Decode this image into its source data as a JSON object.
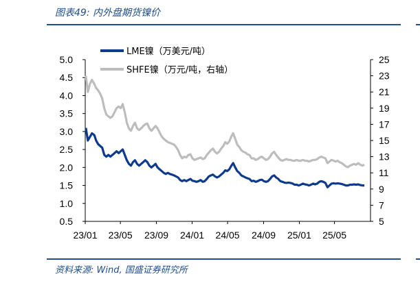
{
  "figure": {
    "title": "图表49: 内外盘期货镍价",
    "source": "资料来源: Wind, 国盛证券研究所"
  },
  "colors": {
    "lme": "#0d3a8f",
    "shfe": "#bdbdbd",
    "accent": "#1f4e8c",
    "axis": "#000000"
  },
  "chart_data": {
    "type": "line",
    "title": "",
    "xlabel": "",
    "ylabel": "",
    "x_ticks": [
      "23/01",
      "23/05",
      "23/09",
      "24/01",
      "24/05",
      "24/09",
      "25/01",
      "25/05"
    ],
    "y_left": {
      "range": [
        0.5,
        5.0
      ],
      "ticks": [
        "5.0",
        "4.5",
        "4.0",
        "3.5",
        "3.0",
        "2.5",
        "2.0",
        "1.5",
        "1.0",
        "0.5"
      ]
    },
    "y_right": {
      "range": [
        5,
        25
      ],
      "ticks": [
        "25",
        "23",
        "21",
        "19",
        "17",
        "15",
        "13",
        "11",
        "9",
        "7",
        "5"
      ]
    },
    "legend_position": "top-center",
    "grid": false,
    "series": [
      {
        "name": "LME镍（万美元/吨）",
        "axis": "left",
        "points": [
          [
            "2023-01-03",
            3.1
          ],
          [
            "2023-01-10",
            2.75
          ],
          [
            "2023-01-17",
            2.85
          ],
          [
            "2023-01-24",
            2.95
          ],
          [
            "2023-02-01",
            2.9
          ],
          [
            "2023-02-07",
            2.75
          ],
          [
            "2023-02-14",
            2.65
          ],
          [
            "2023-02-21",
            2.6
          ],
          [
            "2023-02-28",
            2.55
          ],
          [
            "2023-03-07",
            2.35
          ],
          [
            "2023-03-14",
            2.3
          ],
          [
            "2023-03-21",
            2.35
          ],
          [
            "2023-03-28",
            2.3
          ],
          [
            "2023-04-04",
            2.35
          ],
          [
            "2023-04-11",
            2.4
          ],
          [
            "2023-04-18",
            2.45
          ],
          [
            "2023-04-25",
            2.4
          ],
          [
            "2023-05-02",
            2.45
          ],
          [
            "2023-05-09",
            2.5
          ],
          [
            "2023-05-16",
            2.35
          ],
          [
            "2023-05-23",
            2.2
          ],
          [
            "2023-05-30",
            2.1
          ],
          [
            "2023-06-06",
            2.05
          ],
          [
            "2023-06-13",
            2.15
          ],
          [
            "2023-06-20",
            2.2
          ],
          [
            "2023-06-27",
            2.1
          ],
          [
            "2023-07-04",
            2.05
          ],
          [
            "2023-07-11",
            2.1
          ],
          [
            "2023-07-18",
            2.15
          ],
          [
            "2023-07-25",
            2.2
          ],
          [
            "2023-08-01",
            2.15
          ],
          [
            "2023-08-08",
            2.05
          ],
          [
            "2023-08-15",
            2.0
          ],
          [
            "2023-08-22",
            2.05
          ],
          [
            "2023-08-29",
            2.1
          ],
          [
            "2023-09-05",
            2.0
          ],
          [
            "2023-09-12",
            1.95
          ],
          [
            "2023-09-19",
            1.9
          ],
          [
            "2023-09-26",
            1.85
          ],
          [
            "2023-10-03",
            1.82
          ],
          [
            "2023-10-10",
            1.85
          ],
          [
            "2023-10-17",
            1.82
          ],
          [
            "2023-10-24",
            1.8
          ],
          [
            "2023-10-31",
            1.78
          ],
          [
            "2023-11-07",
            1.75
          ],
          [
            "2023-11-14",
            1.72
          ],
          [
            "2023-11-21",
            1.65
          ],
          [
            "2023-11-28",
            1.62
          ],
          [
            "2023-12-05",
            1.65
          ],
          [
            "2023-12-12",
            1.62
          ],
          [
            "2023-12-19",
            1.65
          ],
          [
            "2023-12-26",
            1.68
          ],
          [
            "2024-01-02",
            1.63
          ],
          [
            "2024-01-09",
            1.62
          ],
          [
            "2024-01-16",
            1.6
          ],
          [
            "2024-01-23",
            1.62
          ],
          [
            "2024-01-30",
            1.65
          ],
          [
            "2024-02-06",
            1.6
          ],
          [
            "2024-02-13",
            1.62
          ],
          [
            "2024-02-20",
            1.68
          ],
          [
            "2024-02-27",
            1.75
          ],
          [
            "2024-03-05",
            1.78
          ],
          [
            "2024-03-12",
            1.8
          ],
          [
            "2024-03-19",
            1.75
          ],
          [
            "2024-03-26",
            1.72
          ],
          [
            "2024-04-02",
            1.75
          ],
          [
            "2024-04-09",
            1.8
          ],
          [
            "2024-04-16",
            1.85
          ],
          [
            "2024-04-23",
            1.92
          ],
          [
            "2024-04-30",
            1.9
          ],
          [
            "2024-05-07",
            1.95
          ],
          [
            "2024-05-14",
            2.05
          ],
          [
            "2024-05-20",
            2.12
          ],
          [
            "2024-05-27",
            2.0
          ],
          [
            "2024-06-03",
            1.9
          ],
          [
            "2024-06-10",
            1.85
          ],
          [
            "2024-06-17",
            1.78
          ],
          [
            "2024-06-24",
            1.75
          ],
          [
            "2024-07-01",
            1.72
          ],
          [
            "2024-07-08",
            1.7
          ],
          [
            "2024-07-15",
            1.68
          ],
          [
            "2024-07-22",
            1.62
          ],
          [
            "2024-07-29",
            1.63
          ],
          [
            "2024-08-05",
            1.6
          ],
          [
            "2024-08-12",
            1.62
          ],
          [
            "2024-08-19",
            1.65
          ],
          [
            "2024-08-26",
            1.66
          ],
          [
            "2024-09-02",
            1.62
          ],
          [
            "2024-09-09",
            1.6
          ],
          [
            "2024-09-16",
            1.62
          ],
          [
            "2024-09-23",
            1.68
          ],
          [
            "2024-09-30",
            1.75
          ],
          [
            "2024-10-07",
            1.78
          ],
          [
            "2024-10-14",
            1.72
          ],
          [
            "2024-10-21",
            1.68
          ],
          [
            "2024-10-28",
            1.62
          ],
          [
            "2024-11-04",
            1.6
          ],
          [
            "2024-11-11",
            1.58
          ],
          [
            "2024-11-18",
            1.57
          ],
          [
            "2024-11-25",
            1.58
          ],
          [
            "2024-12-02",
            1.57
          ],
          [
            "2024-12-09",
            1.55
          ],
          [
            "2024-12-16",
            1.52
          ],
          [
            "2024-12-23",
            1.52
          ],
          [
            "2024-12-30",
            1.5
          ],
          [
            "2025-01-06",
            1.52
          ],
          [
            "2025-01-13",
            1.55
          ],
          [
            "2025-01-20",
            1.53
          ],
          [
            "2025-01-27",
            1.52
          ],
          [
            "2025-02-03",
            1.5
          ],
          [
            "2025-02-10",
            1.52
          ],
          [
            "2025-02-17",
            1.55
          ],
          [
            "2025-02-24",
            1.53
          ],
          [
            "2025-03-03",
            1.55
          ],
          [
            "2025-03-10",
            1.6
          ],
          [
            "2025-03-17",
            1.62
          ],
          [
            "2025-03-24",
            1.6
          ],
          [
            "2025-03-31",
            1.57
          ],
          [
            "2025-04-07",
            1.45
          ],
          [
            "2025-04-14",
            1.5
          ],
          [
            "2025-04-21",
            1.55
          ],
          [
            "2025-04-28",
            1.56
          ],
          [
            "2025-05-05",
            1.55
          ],
          [
            "2025-05-12",
            1.56
          ],
          [
            "2025-05-19",
            1.55
          ],
          [
            "2025-05-26",
            1.54
          ],
          [
            "2025-06-02",
            1.52
          ],
          [
            "2025-06-09",
            1.5
          ],
          [
            "2025-06-16",
            1.5
          ],
          [
            "2025-06-23",
            1.52
          ],
          [
            "2025-06-30",
            1.52
          ],
          [
            "2025-07-07",
            1.53
          ],
          [
            "2025-07-14",
            1.52
          ],
          [
            "2025-07-21",
            1.53
          ],
          [
            "2025-07-28",
            1.51
          ],
          [
            "2025-08-04",
            1.5
          ],
          [
            "2025-08-11",
            1.5
          ]
        ]
      },
      {
        "name": "SHFE镍（万元/吨，右轴）",
        "axis": "right",
        "points": [
          [
            "2023-01-03",
            23.0
          ],
          [
            "2023-01-10",
            21.0
          ],
          [
            "2023-01-17",
            22.0
          ],
          [
            "2023-01-24",
            22.5
          ],
          [
            "2023-02-01",
            22.0
          ],
          [
            "2023-02-07",
            21.5
          ],
          [
            "2023-02-14",
            21.2
          ],
          [
            "2023-02-21",
            20.8
          ],
          [
            "2023-02-28",
            20.2
          ],
          [
            "2023-03-07",
            19.0
          ],
          [
            "2023-03-14",
            18.2
          ],
          [
            "2023-03-21",
            18.0
          ],
          [
            "2023-03-28",
            17.8
          ],
          [
            "2023-04-04",
            18.0
          ],
          [
            "2023-04-11",
            18.5
          ],
          [
            "2023-04-18",
            19.0
          ],
          [
            "2023-04-25",
            19.2
          ],
          [
            "2023-05-02",
            19.0
          ],
          [
            "2023-05-09",
            19.5
          ],
          [
            "2023-05-16",
            18.5
          ],
          [
            "2023-05-23",
            17.2
          ],
          [
            "2023-05-30",
            16.5
          ],
          [
            "2023-06-06",
            16.2
          ],
          [
            "2023-06-13",
            16.8
          ],
          [
            "2023-06-20",
            17.2
          ],
          [
            "2023-06-27",
            16.5
          ],
          [
            "2023-07-04",
            16.3
          ],
          [
            "2023-07-11",
            16.5
          ],
          [
            "2023-07-18",
            16.8
          ],
          [
            "2023-07-25",
            17.0
          ],
          [
            "2023-08-01",
            17.1
          ],
          [
            "2023-08-08",
            16.5
          ],
          [
            "2023-08-15",
            16.2
          ],
          [
            "2023-08-22",
            16.5
          ],
          [
            "2023-08-29",
            16.8
          ],
          [
            "2023-09-05",
            16.5
          ],
          [
            "2023-09-12",
            16.0
          ],
          [
            "2023-09-19",
            15.5
          ],
          [
            "2023-09-26",
            15.2
          ],
          [
            "2023-10-03",
            15.0
          ],
          [
            "2023-10-10",
            14.8
          ],
          [
            "2023-10-17",
            14.7
          ],
          [
            "2023-10-24",
            14.6
          ],
          [
            "2023-10-31",
            14.5
          ],
          [
            "2023-11-07",
            14.2
          ],
          [
            "2023-11-14",
            13.8
          ],
          [
            "2023-11-21",
            13.2
          ],
          [
            "2023-11-28",
            12.8
          ],
          [
            "2023-12-05",
            13.0
          ],
          [
            "2023-12-12",
            12.9
          ],
          [
            "2023-12-19",
            13.2
          ],
          [
            "2023-12-26",
            13.3
          ],
          [
            "2024-01-02",
            12.8
          ],
          [
            "2024-01-09",
            12.6
          ],
          [
            "2024-01-16",
            12.7
          ],
          [
            "2024-01-23",
            12.8
          ],
          [
            "2024-01-30",
            12.9
          ],
          [
            "2024-02-06",
            12.7
          ],
          [
            "2024-02-13",
            12.8
          ],
          [
            "2024-02-20",
            13.2
          ],
          [
            "2024-02-27",
            13.5
          ],
          [
            "2024-03-05",
            13.8
          ],
          [
            "2024-03-12",
            14.0
          ],
          [
            "2024-03-19",
            13.6
          ],
          [
            "2024-03-26",
            13.4
          ],
          [
            "2024-04-02",
            13.6
          ],
          [
            "2024-04-09",
            14.0
          ],
          [
            "2024-04-16",
            14.3
          ],
          [
            "2024-04-23",
            14.8
          ],
          [
            "2024-04-30",
            14.6
          ],
          [
            "2024-05-07",
            14.9
          ],
          [
            "2024-05-14",
            15.5
          ],
          [
            "2024-05-20",
            15.9
          ],
          [
            "2024-05-27",
            15.2
          ],
          [
            "2024-06-03",
            14.5
          ],
          [
            "2024-06-10",
            14.2
          ],
          [
            "2024-06-17",
            13.8
          ],
          [
            "2024-06-24",
            13.6
          ],
          [
            "2024-07-01",
            13.5
          ],
          [
            "2024-07-08",
            13.3
          ],
          [
            "2024-07-15",
            13.2
          ],
          [
            "2024-07-22",
            12.8
          ],
          [
            "2024-07-29",
            12.8
          ],
          [
            "2024-08-05",
            12.6
          ],
          [
            "2024-08-12",
            12.7
          ],
          [
            "2024-08-19",
            12.9
          ],
          [
            "2024-08-26",
            13.0
          ],
          [
            "2024-09-02",
            12.8
          ],
          [
            "2024-09-09",
            12.6
          ],
          [
            "2024-09-16",
            12.7
          ],
          [
            "2024-09-23",
            13.0
          ],
          [
            "2024-09-30",
            13.4
          ],
          [
            "2024-10-07",
            13.6
          ],
          [
            "2024-10-14",
            13.2
          ],
          [
            "2024-10-21",
            12.9
          ],
          [
            "2024-10-28",
            12.6
          ],
          [
            "2024-11-04",
            12.5
          ],
          [
            "2024-11-11",
            12.6
          ],
          [
            "2024-11-18",
            12.7
          ],
          [
            "2024-11-25",
            12.6
          ],
          [
            "2024-12-02",
            12.6
          ],
          [
            "2024-12-09",
            12.5
          ],
          [
            "2024-12-16",
            12.5
          ],
          [
            "2024-12-23",
            12.6
          ],
          [
            "2024-12-30",
            12.5
          ],
          [
            "2025-01-06",
            12.5
          ],
          [
            "2025-01-13",
            12.6
          ],
          [
            "2025-01-20",
            12.5
          ],
          [
            "2025-01-27",
            12.5
          ],
          [
            "2025-02-03",
            12.4
          ],
          [
            "2025-02-10",
            12.5
          ],
          [
            "2025-02-17",
            12.6
          ],
          [
            "2025-02-24",
            12.6
          ],
          [
            "2025-03-03",
            12.7
          ],
          [
            "2025-03-10",
            12.9
          ],
          [
            "2025-03-17",
            13.0
          ],
          [
            "2025-03-24",
            12.9
          ],
          [
            "2025-03-31",
            12.8
          ],
          [
            "2025-04-07",
            12.2
          ],
          [
            "2025-04-14",
            12.4
          ],
          [
            "2025-04-21",
            12.6
          ],
          [
            "2025-04-28",
            12.5
          ],
          [
            "2025-05-05",
            12.4
          ],
          [
            "2025-05-12",
            12.5
          ],
          [
            "2025-05-19",
            12.3
          ],
          [
            "2025-05-26",
            12.2
          ],
          [
            "2025-06-02",
            12.0
          ],
          [
            "2025-06-09",
            11.8
          ],
          [
            "2025-06-16",
            11.7
          ],
          [
            "2025-06-23",
            11.9
          ],
          [
            "2025-06-30",
            12.0
          ],
          [
            "2025-07-07",
            12.1
          ],
          [
            "2025-07-14",
            12.0
          ],
          [
            "2025-07-21",
            12.2
          ],
          [
            "2025-07-28",
            12.0
          ],
          [
            "2025-08-04",
            11.9
          ],
          [
            "2025-08-11",
            12.0
          ]
        ]
      }
    ]
  }
}
